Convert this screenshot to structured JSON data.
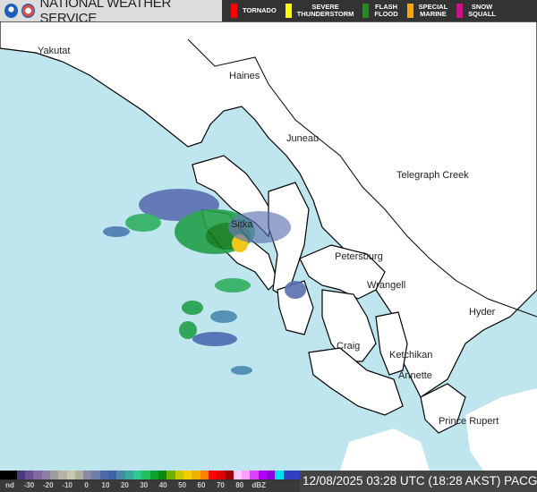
{
  "header": {
    "title": "NATIONAL WEATHER SERVICE",
    "logos": [
      "noaa-logo",
      "nws-logo"
    ],
    "warnings": [
      {
        "label": "TORNADO",
        "color": "#ff0000"
      },
      {
        "label": "SEVERE\nTHUNDERSTORM",
        "color": "#ffff00"
      },
      {
        "label": "FLASH\nFLOOD",
        "color": "#228b22"
      },
      {
        "label": "SPECIAL\nMARINE",
        "color": "#ffa500"
      },
      {
        "label": "SNOW\nSQUALL",
        "color": "#c71585"
      }
    ]
  },
  "map": {
    "places": [
      "Yakutat",
      "Haines",
      "Juneau",
      "Telegraph Creek",
      "Sitka",
      "Petersburg",
      "Wrangell",
      "Hyder",
      "Craig",
      "Ketchikan",
      "Annette",
      "Prince Rupert"
    ],
    "ocean_color": "#bfe5ee",
    "land_color": "#ffffff"
  },
  "footer": {
    "scale_labels": [
      "nd",
      "-30",
      "-20",
      "-10",
      "0",
      "10",
      "20",
      "30",
      "40",
      "50",
      "60",
      "70",
      "80",
      "dBZ"
    ],
    "scale_colors": [
      "#000000",
      "#000000",
      "#4b3a7a",
      "#6a4f94",
      "#7f6aa0",
      "#8e7fa8",
      "#9c9c9c",
      "#b3b3a6",
      "#c8c8a8",
      "#b0b0a0",
      "#8a8aa0",
      "#6e7ea8",
      "#4e6aa8",
      "#3f62a8",
      "#4a8aa0",
      "#3aa89a",
      "#30c890",
      "#20c060",
      "#10a030",
      "#0a8a10",
      "#70b000",
      "#c8c800",
      "#f0d000",
      "#f0b000",
      "#ff8000",
      "#ff0000",
      "#e00000",
      "#a00000",
      "#ffc8ff",
      "#ffa0ff",
      "#e040ff",
      "#b000ff",
      "#9000e0",
      "#00e0f0",
      "#3040c0",
      "#3040c0"
    ],
    "timestamp": "12/08/2025 03:28 UTC (18:28 AKST) PACG"
  }
}
